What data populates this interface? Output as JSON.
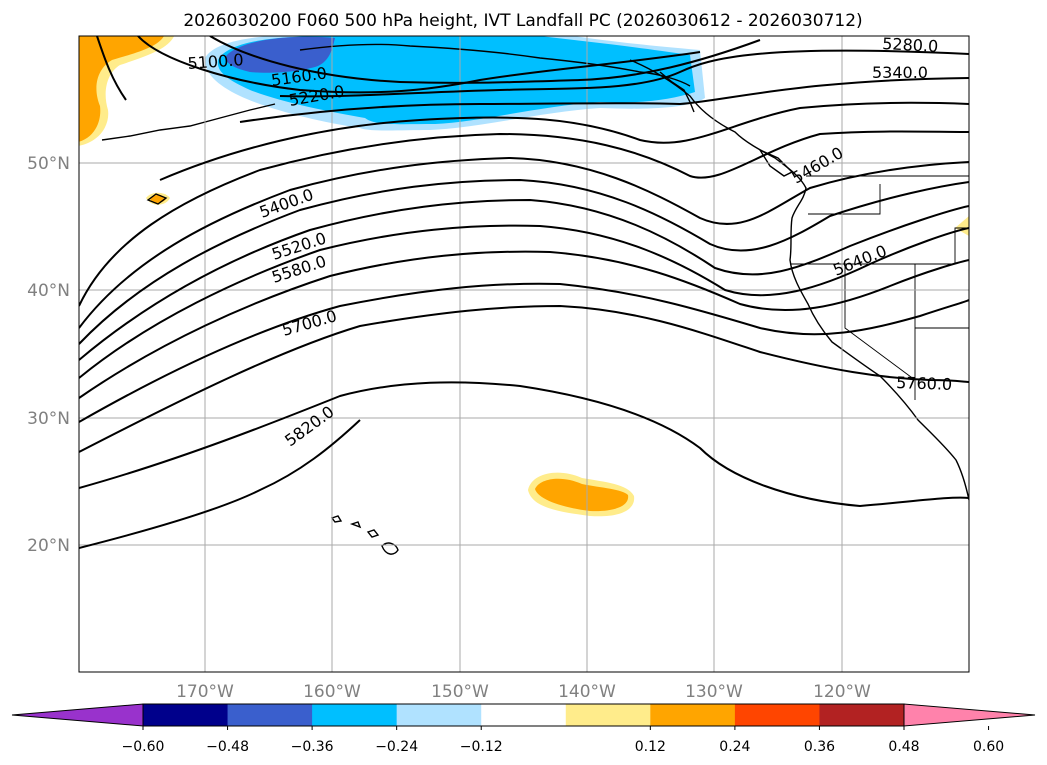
{
  "title": "2026030200 F060 500 hPa height, IVT Landfall PC (2026030612 - 2026030712)",
  "map": {
    "lon_range": [
      -180,
      -110
    ],
    "lat_range": [
      10,
      60
    ],
    "lat_labels": [
      "50°N",
      "40°N",
      "30°N",
      "20°N"
    ],
    "lon_labels": [
      "170°W",
      "160°W",
      "150°W",
      "140°W",
      "130°W",
      "120°W"
    ],
    "contour_labels": [
      {
        "text": "5100.0"
      },
      {
        "text": "5160.0"
      },
      {
        "text": "5220.0"
      },
      {
        "text": "5280.0"
      },
      {
        "text": "5340.0"
      },
      {
        "text": "5400.0"
      },
      {
        "text": "5460.0"
      },
      {
        "text": "5520.0"
      },
      {
        "text": "5580.0"
      },
      {
        "text": "5640.0"
      },
      {
        "text": "5700.0"
      },
      {
        "text": "5760.0"
      },
      {
        "text": "5820.0"
      }
    ]
  },
  "colorbar": {
    "ticks": [
      "−0.60",
      "−0.48",
      "−0.36",
      "−0.24",
      "−0.12",
      "0.12",
      "0.24",
      "0.36",
      "0.48",
      "0.60"
    ],
    "colors": [
      "#9932CC",
      "#00008B",
      "#3A5FCD",
      "#00BFFF",
      "#B0E2FF",
      "#FFFFFF",
      "#FFEC8B",
      "#FFA500",
      "#FF4500",
      "#B22222",
      "#FF82AB"
    ]
  }
}
